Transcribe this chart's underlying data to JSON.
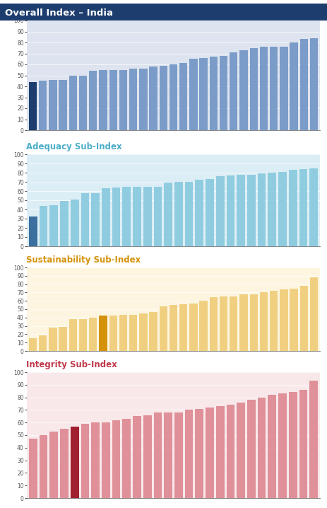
{
  "overall": {
    "title": "Overall Index – India",
    "title_color": "#ffffff",
    "title_bg": "#1c3d6e",
    "bg_color": "#dde4ef",
    "values": [
      44,
      45,
      46,
      46,
      50,
      50,
      54,
      55,
      55,
      55,
      56,
      56,
      58,
      59,
      60,
      61,
      65,
      66,
      67,
      68,
      71,
      73,
      75,
      76,
      76,
      76,
      80,
      83,
      84
    ],
    "india_index": 0,
    "bar_color": "#7b9cc8",
    "india_color": "#1c3d6e",
    "ylim": [
      0,
      100
    ],
    "yticks": [
      0,
      10,
      20,
      30,
      40,
      50,
      60,
      70,
      80,
      90,
      100
    ]
  },
  "adequacy": {
    "title": "Adequacy Sub-Index",
    "title_color": "#4baec8",
    "bg_color": "#dceef5",
    "values": [
      32,
      44,
      45,
      49,
      51,
      58,
      58,
      63,
      64,
      65,
      65,
      65,
      65,
      69,
      70,
      70,
      72,
      73,
      76,
      77,
      78,
      78,
      79,
      80,
      81,
      83,
      84,
      85
    ],
    "india_index": 0,
    "bar_color": "#90cce0",
    "india_color": "#3a6fa0",
    "ylim": [
      0,
      100
    ],
    "yticks": [
      0,
      10,
      20,
      30,
      40,
      50,
      60,
      70,
      80,
      90,
      100
    ]
  },
  "sustainability": {
    "title": "Sustainability Sub-Index",
    "title_color": "#d4920a",
    "bg_color": "#fdf5e0",
    "values": [
      15,
      19,
      28,
      29,
      38,
      38,
      40,
      42,
      42,
      43,
      43,
      45,
      47,
      53,
      55,
      56,
      57,
      60,
      64,
      65,
      65,
      68,
      68,
      70,
      72,
      74,
      75,
      78,
      88
    ],
    "india_index": 7,
    "bar_color": "#f0d080",
    "india_color": "#d4920a",
    "ylim": [
      0,
      100
    ],
    "yticks": [
      0,
      10,
      20,
      30,
      40,
      50,
      60,
      70,
      80,
      90,
      100
    ]
  },
  "integrity": {
    "title": "Integrity Sub-Index",
    "title_color": "#c0394b",
    "bg_color": "#f8e8ea",
    "values": [
      47,
      50,
      53,
      55,
      57,
      59,
      60,
      60,
      62,
      63,
      65,
      66,
      68,
      68,
      68,
      70,
      71,
      72,
      73,
      74,
      76,
      78,
      80,
      82,
      83,
      84,
      86,
      93
    ],
    "india_index": 4,
    "bar_color": "#e09098",
    "india_color": "#a02030",
    "ylim": [
      0,
      100
    ],
    "yticks": [
      0,
      10,
      20,
      30,
      40,
      50,
      60,
      70,
      80,
      90,
      100
    ]
  },
  "fig_width": 4.63,
  "fig_height": 7.18,
  "fig_dpi": 100
}
